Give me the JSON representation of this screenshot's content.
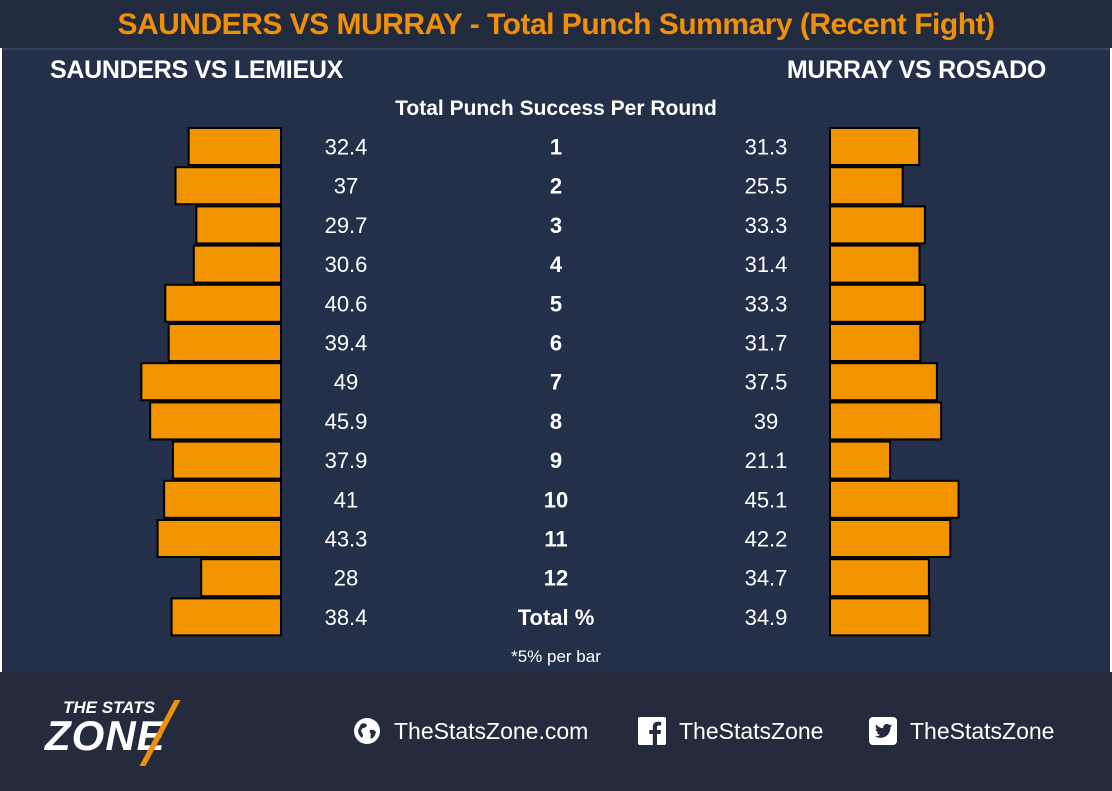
{
  "title": "SAUNDERS VS MURRAY - Total Punch Summary (Recent Fight)",
  "left_label": "SAUNDERS VS LEMIEUX",
  "right_label": "MURRAY VS ROSADO",
  "note": "*5% per bar",
  "colors": {
    "accent": "#f0900a",
    "bar": "#f29400",
    "background": "#243049",
    "text": "#ffffff"
  },
  "logo": {
    "top": "THE STATS",
    "bottom": "ZONE"
  },
  "footer": {
    "website": "TheStatsZone.com",
    "facebook": "TheStatsZone",
    "twitter": "TheStatsZone",
    "icons": [
      "globe-icon",
      "facebook-icon",
      "twitter-icon"
    ]
  },
  "chart_data": {
    "type": "bar",
    "title": "Total Punch Success Per Round",
    "categories": [
      "1",
      "2",
      "3",
      "4",
      "5",
      "6",
      "7",
      "8",
      "9",
      "10",
      "11",
      "12",
      "Total %"
    ],
    "series": [
      {
        "name": "SAUNDERS VS LEMIEUX",
        "values": [
          32.4,
          37,
          29.7,
          30.6,
          40.6,
          39.4,
          49,
          45.9,
          37.9,
          41,
          43.3,
          28,
          38.4
        ]
      },
      {
        "name": "MURRAY VS ROSADO",
        "values": [
          31.3,
          25.5,
          33.3,
          31.4,
          33.3,
          31.7,
          37.5,
          39,
          21.1,
          45.1,
          42.2,
          34.7,
          34.9
        ]
      }
    ],
    "value_labels": {
      "left": [
        "32.4",
        "37",
        "29.7",
        "30.6",
        "40.6",
        "39.4",
        "49",
        "45.9",
        "37.9",
        "41",
        "43.3",
        "28",
        "38.4"
      ],
      "right": [
        "31.3",
        "25.5",
        "33.3",
        "31.4",
        "33.3",
        "31.7",
        "37.5",
        "39",
        "21.1",
        "45.1",
        "42.2",
        "34.7",
        "34.9"
      ]
    },
    "bar_unit_percent": 5
  }
}
